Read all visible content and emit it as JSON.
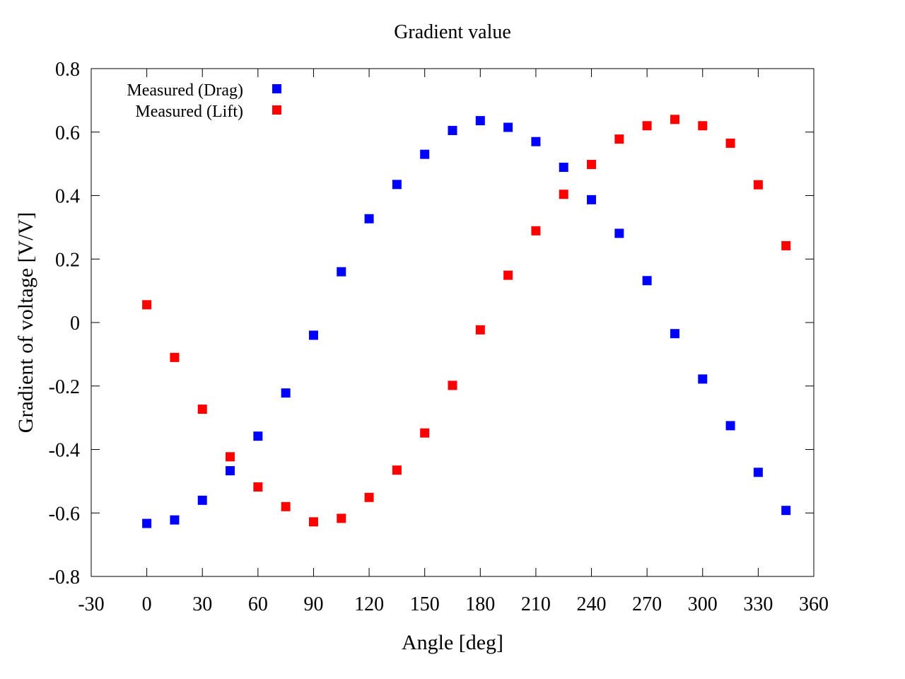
{
  "chart_data": {
    "type": "scatter",
    "title": "Gradient value",
    "xlabel": "Angle [deg]",
    "ylabel": "Gradient of voltage [V/V]",
    "xlim": [
      -30,
      360
    ],
    "ylim": [
      -0.8,
      0.8
    ],
    "xticks": [
      -30,
      0,
      30,
      60,
      90,
      120,
      150,
      180,
      210,
      240,
      270,
      300,
      330,
      360
    ],
    "yticks": [
      -0.8,
      -0.6,
      -0.4,
      -0.2,
      0,
      0.2,
      0.4,
      0.6,
      0.8
    ],
    "xtick_labels": [
      "-30",
      "0",
      "30",
      "60",
      "90",
      "120",
      "150",
      "180",
      "210",
      "240",
      "270",
      "300",
      "330",
      "360"
    ],
    "ytick_labels": [
      "-0.8",
      "-0.6",
      "-0.4",
      "-0.2",
      "0",
      "0.2",
      "0.4",
      "0.6",
      "0.8"
    ],
    "grid": false,
    "legend_position": "top-left",
    "series": [
      {
        "name": "Measured (Drag)",
        "color": "#0000ff",
        "marker": "square",
        "x": [
          0,
          15,
          30,
          45,
          60,
          75,
          90,
          105,
          120,
          135,
          150,
          165,
          180,
          195,
          210,
          225,
          240,
          255,
          270,
          285,
          300,
          315,
          330,
          345
        ],
        "y": [
          -0.633,
          -0.622,
          -0.56,
          -0.467,
          -0.358,
          -0.222,
          -0.04,
          0.16,
          0.327,
          0.435,
          0.53,
          0.605,
          0.636,
          0.615,
          0.57,
          0.489,
          0.387,
          0.281,
          0.132,
          -0.035,
          -0.178,
          -0.325,
          -0.472,
          -0.592
        ]
      },
      {
        "name": "Measured (Lift)",
        "color": "#ff0000",
        "marker": "square",
        "x": [
          0,
          15,
          30,
          45,
          60,
          75,
          90,
          105,
          120,
          135,
          150,
          165,
          180,
          195,
          210,
          225,
          240,
          255,
          270,
          285,
          300,
          315,
          330,
          345
        ],
        "y": [
          0.056,
          -0.11,
          -0.273,
          -0.423,
          -0.518,
          -0.58,
          -0.628,
          -0.617,
          -0.551,
          -0.465,
          -0.348,
          -0.198,
          -0.023,
          0.149,
          0.289,
          0.404,
          0.498,
          0.578,
          0.62,
          0.64,
          0.62,
          0.565,
          0.434,
          0.242
        ]
      }
    ]
  }
}
